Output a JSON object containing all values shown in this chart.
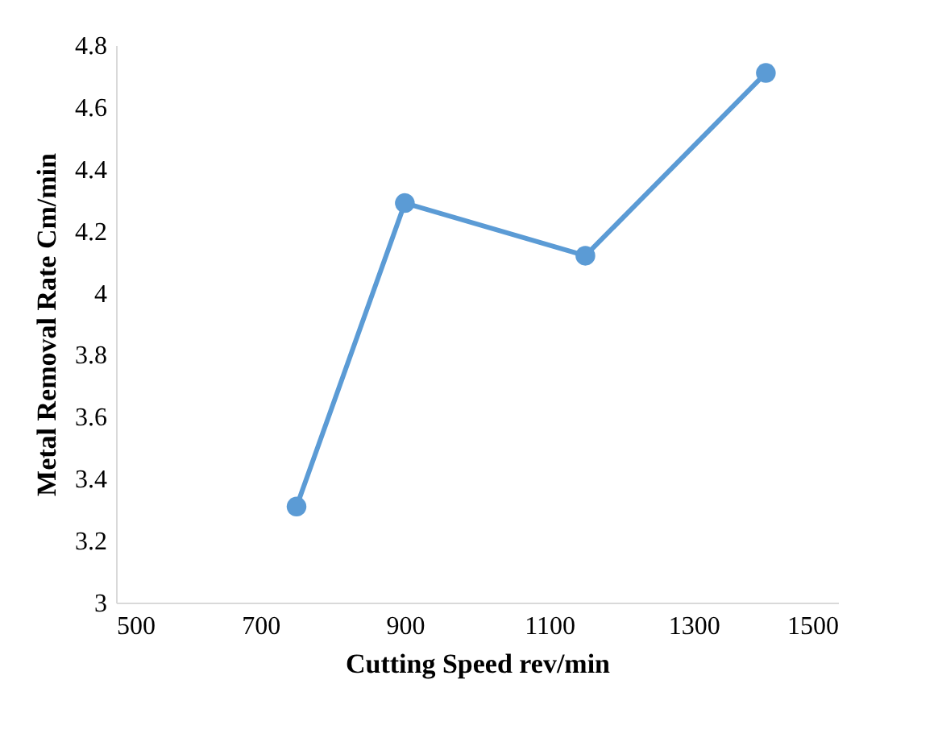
{
  "chart_data": {
    "type": "line",
    "xlabel": "Cutting Speed rev/min",
    "ylabel": "Metal Removal Rate Cm/min",
    "x": [
      750,
      900,
      1150,
      1400
    ],
    "series": [
      {
        "color": "#5b9bd5",
        "values": [
          3.31,
          4.29,
          4.12,
          4.71
        ]
      }
    ],
    "xlim": [
      500,
      1500
    ],
    "xticks": [
      500,
      700,
      900,
      1100,
      1300,
      1500
    ],
    "ylim": [
      3,
      4.8
    ],
    "yticks": [
      3,
      3.2,
      3.4,
      3.6,
      3.8,
      4,
      4.2,
      4.4,
      4.6,
      4.8
    ],
    "grid": false,
    "legend": false,
    "marker": "circle",
    "line_style": "solid"
  }
}
